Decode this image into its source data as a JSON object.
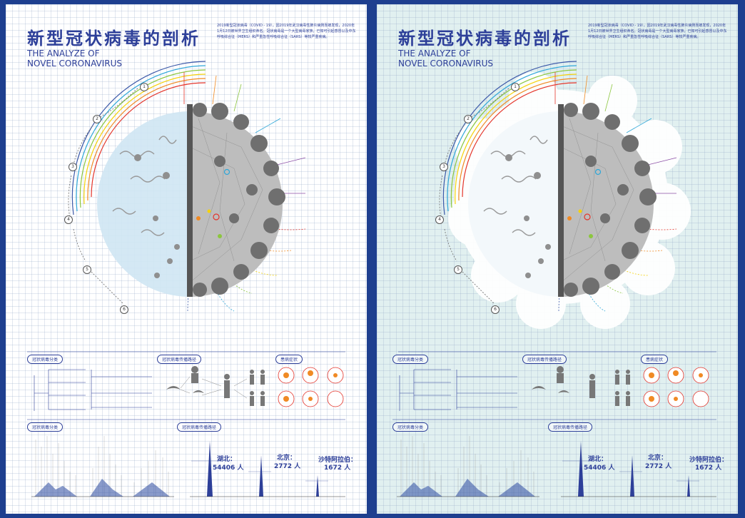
{
  "posters": [
    {
      "title": "新型冠状病毒的剖析",
      "subtitle_line1": "THE ANALYZE OF",
      "subtitle_line2": "NOVEL CORONAVIRUS",
      "intro": "2019新型冠状病毒（COVID - 19），因2019年武汉病毒性肺炎病例而被发现，2020年1月12日被世界卫生组织命名。冠状病毒是一个大型病毒家族，已知可引起感冒以及中东呼吸综合征（MERS）和严重急性呼吸综合征（SARS）等较严重疾病。",
      "sections": {
        "classification": "冠状病毒分类",
        "transmission": "冠状病毒传播路径",
        "symptoms": "患病症状",
        "classification2": "冠状病毒分类",
        "spread": "冠状病毒传播路径"
      },
      "stats": {
        "hubei_label": "湖北：",
        "hubei_value": "54406",
        "beijing_label": "北京：",
        "beijing_value": "2772",
        "saudi_label": "沙特阿拉伯：",
        "saudi_value": "1672",
        "unit": "人"
      }
    }
  ],
  "numbers": [
    "1",
    "2",
    "3",
    "4",
    "5",
    "6"
  ],
  "colors": {
    "frame": "#1e3f8f",
    "title": "#2d3f99",
    "virus_body": "#b8b8b8",
    "virus_light": "#cfe6f3",
    "bg_right": "#e1f0f0",
    "rainbow": [
      "#e4352b",
      "#f08a24",
      "#f5d20c",
      "#8cc63f",
      "#2fa7d8",
      "#3b58a8",
      "#8b4ea6"
    ]
  }
}
